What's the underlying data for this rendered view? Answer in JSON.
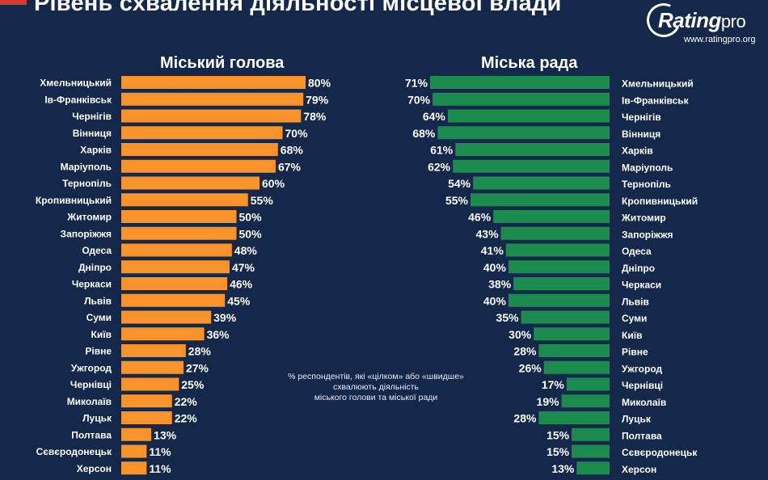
{
  "header": {
    "title": "Рівень схвалення діяльності місцевої влади",
    "logo": {
      "brand": "Rating",
      "suffix": "pro",
      "url": "www.ratingpro.org"
    }
  },
  "note": {
    "line1": "% респондентів, які «цілком» або «швидше»",
    "line2": "схвалюють діяльність",
    "line3": "міського голови та міської ради"
  },
  "colors": {
    "left_bar": "#f7932a",
    "right_bar": "#1b8c4d",
    "background": "#14284b",
    "text": "#ffffff"
  },
  "chart_data": [
    {
      "type": "bar",
      "orientation": "horizontal",
      "title": "Міський голова",
      "categories": [
        "Хмельницький",
        "Ів-Франківськ",
        "Чернігів",
        "Вінниця",
        "Харків",
        "Маріуполь",
        "Тернопіль",
        "Кропивницький",
        "Житомир",
        "Запоріжжя",
        "Одеса",
        "Дніпро",
        "Черкаси",
        "Львів",
        "Суми",
        "Київ",
        "Рівне",
        "Ужгород",
        "Чернівці",
        "Миколаїв",
        "Луцьк",
        "Полтава",
        "Сєвєродонецьк",
        "Херсон"
      ],
      "values": [
        80,
        79,
        78,
        70,
        68,
        67,
        60,
        55,
        50,
        50,
        48,
        47,
        46,
        45,
        39,
        36,
        28,
        27,
        25,
        22,
        22,
        13,
        11,
        11
      ],
      "labels": [
        "80%",
        "79%",
        "78%",
        "70%",
        "68%",
        "67%",
        "60%",
        "55%",
        "50%",
        "50%",
        "48%",
        "47%",
        "46%",
        "45%",
        "39%",
        "36%",
        "28%",
        "27%",
        "25%",
        "22%",
        "22%",
        "13%",
        "11%",
        "11%"
      ],
      "xlim": [
        0,
        80
      ],
      "grid": false,
      "legend": "none"
    },
    {
      "type": "bar",
      "orientation": "horizontal",
      "title": "Міська рада",
      "categories": [
        "Хмельницький",
        "Ів-Франківськ",
        "Чернігів",
        "Вінниця",
        "Харків",
        "Маріуполь",
        "Тернопіль",
        "Кропивницький",
        "Житомир",
        "Запоріжжя",
        "Одеса",
        "Дніпро",
        "Черкаси",
        "Львів",
        "Суми",
        "Київ",
        "Рівне",
        "Ужгород",
        "Чернівці",
        "Миколаїв",
        "Луцьк",
        "Полтава",
        "Сєвєродонецьк",
        "Херсон"
      ],
      "values": [
        71,
        70,
        64,
        68,
        61,
        62,
        54,
        55,
        46,
        43,
        41,
        40,
        38,
        40,
        35,
        30,
        28,
        26,
        17,
        19,
        28,
        15,
        15,
        13
      ],
      "labels": [
        "71%",
        "70%",
        "64%",
        "68%",
        "61%",
        "62%",
        "54%",
        "55%",
        "46%",
        "43%",
        "41%",
        "40%",
        "38%",
        "40%",
        "35%",
        "30%",
        "28%",
        "26%",
        "17%",
        "19%",
        "28%",
        "15%",
        "15%",
        "13%"
      ],
      "xlim": [
        0,
        71
      ],
      "grid": false,
      "legend": "none"
    }
  ]
}
